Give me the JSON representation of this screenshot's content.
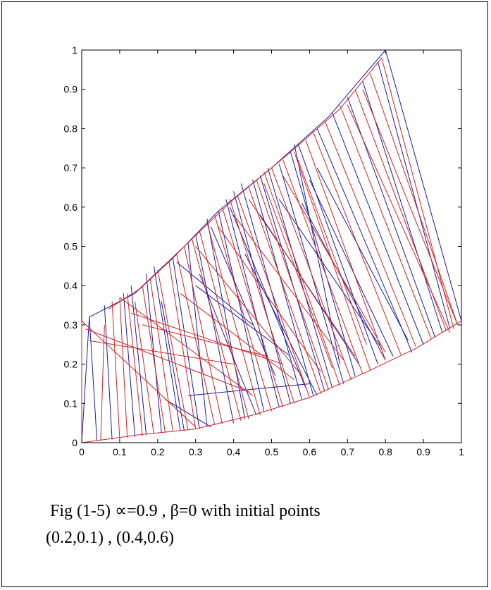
{
  "caption": {
    "line1": " Fig (1-5) ∝=0.9 , β=0 with initial points",
    "line2": "(0.2,0.1) , (0.4,0.6)"
  },
  "chart_data": {
    "type": "line",
    "title": "",
    "xlabel": "",
    "ylabel": "",
    "xlim": [
      0,
      1
    ],
    "ylim": [
      0,
      1
    ],
    "xticks": [
      "0",
      "0.1",
      "0.2",
      "0.3",
      "0.4",
      "0.5",
      "0.6",
      "0.7",
      "0.8",
      "0.9",
      "1"
    ],
    "yticks": [
      "0",
      "0.1",
      "0.2",
      "0.3",
      "0.4",
      "0.5",
      "0.6",
      "0.7",
      "0.8",
      "0.9",
      "1"
    ],
    "grid": false,
    "legend": "none",
    "colors": {
      "series_a": "#1a1aa8",
      "series_b": "#d42020"
    },
    "series": [
      {
        "color": "#1a1aa8",
        "segments": [
          [
            [
              0.0,
              0.0
            ],
            [
              0.02,
              0.32
            ]
          ],
          [
            [
              0.02,
              0.32
            ],
            [
              0.04,
              0.005
            ]
          ],
          [
            [
              0.08,
              0.008
            ],
            [
              0.06,
              0.35
            ]
          ],
          [
            [
              0.11,
              0.38
            ],
            [
              0.14,
              0.015
            ]
          ],
          [
            [
              0.13,
              0.4
            ],
            [
              0.17,
              0.02
            ]
          ],
          [
            [
              0.17,
              0.43
            ],
            [
              0.21,
              0.025
            ]
          ],
          [
            [
              0.19,
              0.45
            ],
            [
              0.26,
              0.03
            ]
          ],
          [
            [
              0.21,
              0.36
            ],
            [
              0.27,
              0.03
            ]
          ],
          [
            [
              0.22,
              0.11
            ],
            [
              0.34,
              0.04
            ]
          ],
          [
            [
              0.24,
              0.47
            ],
            [
              0.31,
              0.035
            ]
          ],
          [
            [
              0.28,
              0.51
            ],
            [
              0.33,
              0.04
            ]
          ],
          [
            [
              0.3,
              0.53
            ],
            [
              0.4,
              0.05
            ]
          ],
          [
            [
              0.31,
              0.43
            ],
            [
              0.46,
              0.07
            ]
          ],
          [
            [
              0.33,
              0.57
            ],
            [
              0.43,
              0.06
            ]
          ],
          [
            [
              0.36,
              0.59
            ],
            [
              0.48,
              0.08
            ]
          ],
          [
            [
              0.38,
              0.62
            ],
            [
              0.52,
              0.09
            ]
          ],
          [
            [
              0.4,
              0.64
            ],
            [
              0.55,
              0.1
            ]
          ],
          [
            [
              0.42,
              0.66
            ],
            [
              0.58,
              0.11
            ]
          ],
          [
            [
              0.43,
              0.48
            ],
            [
              0.62,
              0.12
            ]
          ],
          [
            [
              0.45,
              0.67
            ],
            [
              0.61,
              0.12
            ]
          ],
          [
            [
              0.47,
              0.68
            ],
            [
              0.64,
              0.13
            ]
          ],
          [
            [
              0.49,
              0.7
            ],
            [
              0.66,
              0.14
            ]
          ],
          [
            [
              0.52,
              0.71
            ],
            [
              0.69,
              0.15
            ]
          ],
          [
            [
              0.55,
              0.74
            ],
            [
              0.72,
              0.17
            ]
          ],
          [
            [
              0.57,
              0.76
            ],
            [
              0.78,
              0.2
            ]
          ],
          [
            [
              0.58,
              0.61
            ],
            [
              0.8,
              0.21
            ]
          ],
          [
            [
              0.6,
              0.67
            ],
            [
              0.82,
              0.22
            ]
          ],
          [
            [
              0.62,
              0.8
            ],
            [
              0.87,
              0.23
            ]
          ],
          [
            [
              0.66,
              0.84
            ],
            [
              0.9,
              0.25
            ]
          ],
          [
            [
              0.7,
              0.88
            ],
            [
              0.93,
              0.27
            ]
          ],
          [
            [
              0.74,
              0.92
            ],
            [
              0.95,
              0.28
            ]
          ],
          [
            [
              0.78,
              0.97
            ],
            [
              0.97,
              0.29
            ]
          ],
          [
            [
              0.8,
              1.0
            ],
            [
              1.0,
              0.31
            ]
          ],
          [
            [
              0.47,
              0.58
            ],
            [
              0.73,
              0.2
            ]
          ],
          [
            [
              0.52,
              0.62
            ],
            [
              0.79,
              0.24
            ]
          ],
          [
            [
              0.56,
              0.76
            ],
            [
              0.68,
              0.2
            ]
          ],
          [
            [
              0.62,
              0.7
            ],
            [
              0.86,
              0.26
            ]
          ],
          [
            [
              0.34,
              0.55
            ],
            [
              0.51,
              0.17
            ]
          ],
          [
            [
              0.39,
              0.6
            ],
            [
              0.59,
              0.14
            ]
          ],
          [
            [
              0.02,
              0.32
            ],
            [
              0.14,
              0.38
            ]
          ],
          [
            [
              0.14,
              0.38
            ],
            [
              0.24,
              0.47
            ]
          ],
          [
            [
              0.24,
              0.47
            ],
            [
              0.36,
              0.59
            ]
          ],
          [
            [
              0.36,
              0.59
            ],
            [
              0.5,
              0.7
            ]
          ],
          [
            [
              0.5,
              0.7
            ],
            [
              0.65,
              0.83
            ]
          ],
          [
            [
              0.65,
              0.83
            ],
            [
              0.8,
              1.0
            ]
          ],
          [
            [
              0.25,
              0.46
            ],
            [
              0.45,
              0.3
            ]
          ],
          [
            [
              0.3,
              0.4
            ],
            [
              0.55,
              0.22
            ]
          ],
          [
            [
              0.28,
              0.12
            ],
            [
              0.6,
              0.15
            ]
          ]
        ]
      },
      {
        "color": "#d42020",
        "segments": [
          [
            [
              0.0,
              0.31
            ],
            [
              0.0,
              0.0
            ]
          ],
          [
            [
              0.0,
              0.31
            ],
            [
              0.3,
              0.04
            ]
          ],
          [
            [
              0.01,
              0.29
            ],
            [
              0.44,
              0.13
            ]
          ],
          [
            [
              0.02,
              0.26
            ],
            [
              0.4,
              0.2
            ]
          ],
          [
            [
              0.05,
              0.005
            ],
            [
              0.06,
              0.3
            ]
          ],
          [
            [
              0.08,
              0.36
            ],
            [
              0.1,
              0.01
            ]
          ],
          [
            [
              0.1,
              0.37
            ],
            [
              0.12,
              0.012
            ]
          ],
          [
            [
              0.1,
              0.37
            ],
            [
              0.45,
              0.12
            ]
          ],
          [
            [
              0.12,
              0.38
            ],
            [
              0.16,
              0.018
            ]
          ],
          [
            [
              0.14,
              0.36
            ],
            [
              0.19,
              0.022
            ]
          ],
          [
            [
              0.16,
              0.4
            ],
            [
              0.22,
              0.025
            ]
          ],
          [
            [
              0.18,
              0.42
            ],
            [
              0.24,
              0.028
            ]
          ],
          [
            [
              0.2,
              0.44
            ],
            [
              0.28,
              0.032
            ]
          ],
          [
            [
              0.23,
              0.46
            ],
            [
              0.3,
              0.035
            ]
          ],
          [
            [
              0.25,
              0.48
            ],
            [
              0.35,
              0.045
            ]
          ],
          [
            [
              0.27,
              0.5
            ],
            [
              0.37,
              0.048
            ]
          ],
          [
            [
              0.29,
              0.52
            ],
            [
              0.42,
              0.055
            ]
          ],
          [
            [
              0.31,
              0.54
            ],
            [
              0.44,
              0.06
            ]
          ],
          [
            [
              0.33,
              0.56
            ],
            [
              0.47,
              0.07
            ]
          ],
          [
            [
              0.35,
              0.58
            ],
            [
              0.5,
              0.08
            ]
          ],
          [
            [
              0.37,
              0.6
            ],
            [
              0.53,
              0.09
            ]
          ],
          [
            [
              0.39,
              0.62
            ],
            [
              0.56,
              0.1
            ]
          ],
          [
            [
              0.41,
              0.63
            ],
            [
              0.6,
              0.115
            ]
          ],
          [
            [
              0.44,
              0.65
            ],
            [
              0.63,
              0.125
            ]
          ],
          [
            [
              0.46,
              0.67
            ],
            [
              0.65,
              0.135
            ]
          ],
          [
            [
              0.48,
              0.69
            ],
            [
              0.68,
              0.145
            ]
          ],
          [
            [
              0.5,
              0.7
            ],
            [
              0.71,
              0.16
            ]
          ],
          [
            [
              0.53,
              0.72
            ],
            [
              0.74,
              0.175
            ]
          ],
          [
            [
              0.56,
              0.74
            ],
            [
              0.76,
              0.185
            ]
          ],
          [
            [
              0.59,
              0.77
            ],
            [
              0.8,
              0.21
            ]
          ],
          [
            [
              0.61,
              0.79
            ],
            [
              0.84,
              0.225
            ]
          ],
          [
            [
              0.64,
              0.82
            ],
            [
              0.88,
              0.245
            ]
          ],
          [
            [
              0.68,
              0.86
            ],
            [
              0.92,
              0.265
            ]
          ],
          [
            [
              0.72,
              0.9
            ],
            [
              0.96,
              0.285
            ]
          ],
          [
            [
              0.76,
              0.94
            ],
            [
              0.99,
              0.3
            ]
          ],
          [
            [
              0.79,
              0.98
            ],
            [
              0.98,
              0.29
            ]
          ],
          [
            [
              0.7,
              0.86
            ],
            [
              0.97,
              0.28
            ]
          ],
          [
            [
              0.74,
              0.9
            ],
            [
              0.99,
              0.3
            ]
          ],
          [
            [
              0.36,
              0.55
            ],
            [
              0.63,
              0.18
            ]
          ],
          [
            [
              0.4,
              0.58
            ],
            [
              0.69,
              0.21
            ]
          ],
          [
            [
              0.44,
              0.62
            ],
            [
              0.72,
              0.22
            ]
          ],
          [
            [
              0.3,
              0.5
            ],
            [
              0.58,
              0.17
            ]
          ],
          [
            [
              0.48,
              0.66
            ],
            [
              0.66,
              0.19
            ]
          ],
          [
            [
              0.57,
              0.72
            ],
            [
              0.75,
              0.25
            ]
          ],
          [
            [
              0.53,
              0.68
            ],
            [
              0.8,
              0.23
            ]
          ],
          [
            [
              0.13,
              0.33
            ],
            [
              0.53,
              0.2
            ]
          ],
          [
            [
              0.16,
              0.3
            ],
            [
              0.49,
              0.22
            ]
          ],
          [
            [
              0.26,
              0.38
            ],
            [
              0.56,
              0.16
            ]
          ],
          [
            [
              0.0,
              0.0
            ],
            [
              0.15,
              0.02
            ]
          ],
          [
            [
              0.15,
              0.02
            ],
            [
              0.3,
              0.035
            ]
          ],
          [
            [
              0.3,
              0.035
            ],
            [
              0.45,
              0.07
            ]
          ],
          [
            [
              0.45,
              0.07
            ],
            [
              0.6,
              0.115
            ]
          ],
          [
            [
              0.6,
              0.115
            ],
            [
              0.75,
              0.18
            ]
          ],
          [
            [
              0.75,
              0.18
            ],
            [
              0.88,
              0.24
            ]
          ],
          [
            [
              0.88,
              0.24
            ],
            [
              1.0,
              0.31
            ]
          ],
          [
            [
              0.07,
              0.34
            ],
            [
              0.15,
              0.39
            ]
          ],
          [
            [
              0.15,
              0.39
            ],
            [
              0.27,
              0.5
            ]
          ],
          [
            [
              0.27,
              0.5
            ],
            [
              0.4,
              0.62
            ]
          ],
          [
            [
              0.4,
              0.62
            ],
            [
              0.55,
              0.74
            ]
          ],
          [
            [
              0.55,
              0.74
            ],
            [
              0.68,
              0.85
            ]
          ],
          [
            [
              0.68,
              0.85
            ],
            [
              0.79,
              0.98
            ]
          ]
        ]
      }
    ]
  }
}
